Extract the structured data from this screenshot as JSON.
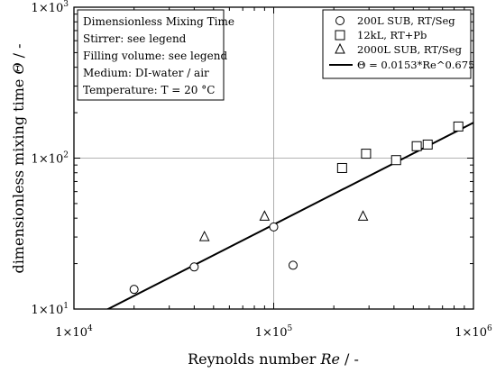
{
  "chart_data": {
    "type": "scatter",
    "xscale": "log",
    "yscale": "log",
    "xlim": [
      10000,
      1000000
    ],
    "ylim": [
      10,
      1000
    ],
    "grid": "major gridlines at 1×10^5 and 1×10^2",
    "xlabel": {
      "text": "Reynolds number ",
      "var": "Re",
      "unit": " / -"
    },
    "ylabel": {
      "text": "dimensionless mixing time ",
      "var": "Θ",
      "unit": " / -"
    },
    "xticks": [
      {
        "value": 10000,
        "mant": "1×10",
        "exp": "4"
      },
      {
        "value": 100000,
        "mant": "1×10",
        "exp": "5"
      },
      {
        "value": 1000000,
        "mant": "1×10",
        "exp": "6"
      }
    ],
    "yticks": [
      {
        "value": 10,
        "mant": "1×10",
        "exp": "1"
      },
      {
        "value": 100,
        "mant": "1×10",
        "exp": "2"
      },
      {
        "value": 1000,
        "mant": "1×10",
        "exp": "3"
      }
    ],
    "info_box": [
      "Dimensionless Mixing Time",
      "Stirrer: see legend",
      "Filling volume: see legend",
      "Medium: DI-water / air",
      "Temperature: T = 20 °C"
    ],
    "legend_position": "top-right",
    "series": [
      {
        "name": "200L SUB, RT/Seg",
        "marker": "circle",
        "x": [
          20000,
          40000,
          100000,
          125000
        ],
        "y": [
          13.5,
          19,
          35,
          19.5
        ]
      },
      {
        "name": "12kL, RT+Pb",
        "marker": "square",
        "x": [
          220000,
          290000,
          410000,
          520000,
          590000,
          840000
        ],
        "y": [
          86,
          107,
          97,
          120,
          123,
          162
        ]
      },
      {
        "name": "2000L SUB, RT/Seg",
        "marker": "triangle",
        "x": [
          45000,
          90000,
          280000
        ],
        "y": [
          30,
          41,
          41
        ]
      }
    ],
    "fit": {
      "name": "Θ = 0.0153*Re^0.675",
      "coef": 0.0153,
      "exponent": 0.675
    }
  }
}
